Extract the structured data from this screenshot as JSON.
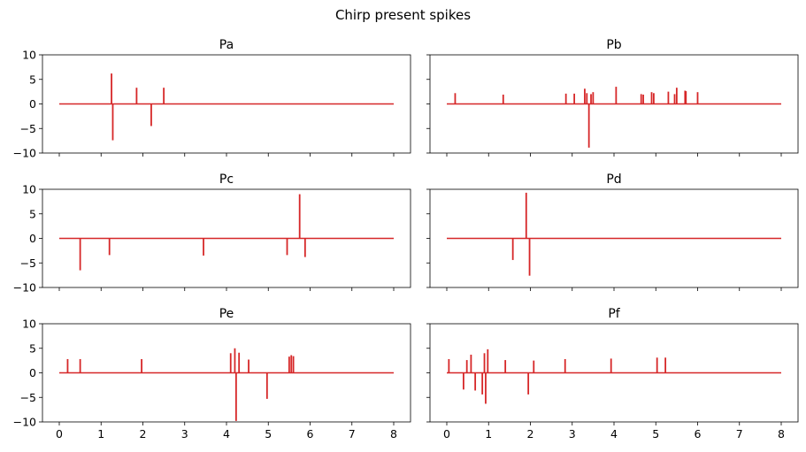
{
  "figure": {
    "suptitle": "Chirp present spikes",
    "line_color": "#d62728"
  },
  "chart_data": [
    {
      "type": "line",
      "title": "Pa",
      "xlim": [
        0,
        8
      ],
      "ylim": [
        -10,
        10
      ],
      "x_ticks": [
        "0",
        "1",
        "2",
        "3",
        "4",
        "5",
        "6",
        "7",
        "8"
      ],
      "y_ticks": [
        "10",
        "5",
        "0",
        "−5",
        "−10"
      ],
      "show_x_tick_labels": false,
      "show_y_tick_labels": true,
      "baseline": 0,
      "spikes": [
        {
          "x": 1.25,
          "y": 6.2
        },
        {
          "x": 1.28,
          "y": -7.4
        },
        {
          "x": 1.85,
          "y": 3.3
        },
        {
          "x": 2.2,
          "y": -4.5
        },
        {
          "x": 2.5,
          "y": 3.3
        }
      ]
    },
    {
      "type": "line",
      "title": "Pb",
      "xlim": [
        0,
        8
      ],
      "ylim": [
        -10,
        10
      ],
      "x_ticks": [
        "0",
        "1",
        "2",
        "3",
        "4",
        "5",
        "6",
        "7",
        "8"
      ],
      "y_ticks": [
        "10",
        "5",
        "0",
        "−5",
        "−10"
      ],
      "show_x_tick_labels": false,
      "show_y_tick_labels": false,
      "baseline": 0,
      "spikes": [
        {
          "x": 0.2,
          "y": 2.2
        },
        {
          "x": 1.35,
          "y": 1.9
        },
        {
          "x": 2.85,
          "y": 2.1
        },
        {
          "x": 3.05,
          "y": 2.1
        },
        {
          "x": 3.3,
          "y": 3.1
        },
        {
          "x": 3.35,
          "y": 2.2
        },
        {
          "x": 3.4,
          "y": -8.9
        },
        {
          "x": 3.45,
          "y": 2.0
        },
        {
          "x": 3.5,
          "y": 2.4
        },
        {
          "x": 4.05,
          "y": 3.5
        },
        {
          "x": 4.65,
          "y": 2.0
        },
        {
          "x": 4.7,
          "y": 1.9
        },
        {
          "x": 4.9,
          "y": 2.4
        },
        {
          "x": 4.95,
          "y": 2.2
        },
        {
          "x": 5.3,
          "y": 2.5
        },
        {
          "x": 5.45,
          "y": 2.0
        },
        {
          "x": 5.5,
          "y": 3.3
        },
        {
          "x": 5.7,
          "y": 2.7
        },
        {
          "x": 5.72,
          "y": 2.6
        },
        {
          "x": 6.0,
          "y": 2.4
        }
      ]
    },
    {
      "type": "line",
      "title": "Pc",
      "xlim": [
        0,
        8
      ],
      "ylim": [
        -10,
        10
      ],
      "x_ticks": [
        "0",
        "1",
        "2",
        "3",
        "4",
        "5",
        "6",
        "7",
        "8"
      ],
      "y_ticks": [
        "10",
        "5",
        "0",
        "−5",
        "−10"
      ],
      "show_x_tick_labels": false,
      "show_y_tick_labels": true,
      "baseline": 0,
      "spikes": [
        {
          "x": 0.5,
          "y": -6.5
        },
        {
          "x": 1.2,
          "y": -3.4
        },
        {
          "x": 3.45,
          "y": -3.5
        },
        {
          "x": 5.45,
          "y": -3.4
        },
        {
          "x": 5.75,
          "y": 9.0
        },
        {
          "x": 5.88,
          "y": -3.8
        }
      ]
    },
    {
      "type": "line",
      "title": "Pd",
      "xlim": [
        0,
        8
      ],
      "ylim": [
        -10,
        10
      ],
      "x_ticks": [
        "0",
        "1",
        "2",
        "3",
        "4",
        "5",
        "6",
        "7",
        "8"
      ],
      "y_ticks": [
        "10",
        "5",
        "0",
        "−5",
        "−10"
      ],
      "show_x_tick_labels": false,
      "show_y_tick_labels": false,
      "baseline": 0,
      "spikes": [
        {
          "x": 1.58,
          "y": -4.4
        },
        {
          "x": 1.9,
          "y": 9.3
        },
        {
          "x": 1.98,
          "y": -7.6
        }
      ]
    },
    {
      "type": "line",
      "title": "Pe",
      "xlim": [
        0,
        8
      ],
      "ylim": [
        -10,
        10
      ],
      "x_ticks": [
        "0",
        "1",
        "2",
        "3",
        "4",
        "5",
        "6",
        "7",
        "8"
      ],
      "y_ticks": [
        "10",
        "5",
        "0",
        "−5",
        "−10"
      ],
      "show_x_tick_labels": true,
      "show_y_tick_labels": true,
      "baseline": 0,
      "spikes": [
        {
          "x": 0.2,
          "y": 2.8
        },
        {
          "x": 0.5,
          "y": 2.8
        },
        {
          "x": 1.97,
          "y": 2.8
        },
        {
          "x": 4.1,
          "y": 4.0
        },
        {
          "x": 4.2,
          "y": 5.0
        },
        {
          "x": 4.23,
          "y": -9.8
        },
        {
          "x": 4.3,
          "y": 4.1
        },
        {
          "x": 4.53,
          "y": 2.7
        },
        {
          "x": 4.97,
          "y": -5.3
        },
        {
          "x": 5.5,
          "y": 3.3
        },
        {
          "x": 5.55,
          "y": 3.6
        },
        {
          "x": 5.6,
          "y": 3.4
        }
      ]
    },
    {
      "type": "line",
      "title": "Pf",
      "xlim": [
        0,
        8
      ],
      "ylim": [
        -10,
        10
      ],
      "x_ticks": [
        "0",
        "1",
        "2",
        "3",
        "4",
        "5",
        "6",
        "7",
        "8"
      ],
      "y_ticks": [
        "10",
        "5",
        "0",
        "−5",
        "−10"
      ],
      "show_x_tick_labels": true,
      "show_y_tick_labels": false,
      "baseline": 0,
      "spikes": [
        {
          "x": 0.05,
          "y": 2.8
        },
        {
          "x": 0.4,
          "y": -3.4
        },
        {
          "x": 0.48,
          "y": 2.6
        },
        {
          "x": 0.58,
          "y": 3.7
        },
        {
          "x": 0.68,
          "y": -3.6
        },
        {
          "x": 0.85,
          "y": -4.4
        },
        {
          "x": 0.9,
          "y": 4.0
        },
        {
          "x": 0.93,
          "y": -6.3
        },
        {
          "x": 0.98,
          "y": 4.8
        },
        {
          "x": 1.4,
          "y": 2.6
        },
        {
          "x": 1.95,
          "y": -4.4
        },
        {
          "x": 2.08,
          "y": 2.5
        },
        {
          "x": 2.83,
          "y": 2.8
        },
        {
          "x": 3.93,
          "y": 2.9
        },
        {
          "x": 5.03,
          "y": 3.1
        },
        {
          "x": 5.23,
          "y": 3.1
        }
      ]
    }
  ]
}
